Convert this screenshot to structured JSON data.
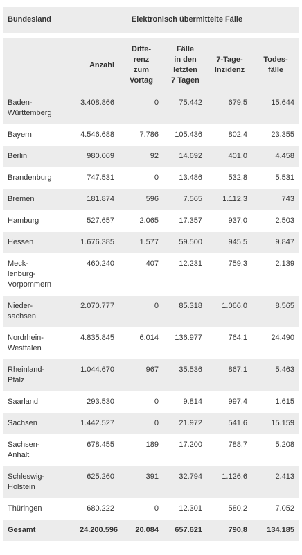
{
  "table": {
    "header": {
      "state": "Bundesland",
      "group": "Elektronisch übermittelte Fälle",
      "columns": [
        [
          "Anzahl"
        ],
        [
          "Diffe-",
          "renz",
          "zum",
          "Vortag"
        ],
        [
          "Fälle",
          "in den",
          "letzten",
          "7 Tagen"
        ],
        [
          "7-Tage-",
          "Inzidenz"
        ],
        [
          "Todes-",
          "fälle"
        ]
      ]
    },
    "rows": [
      {
        "state": [
          "Baden-",
          "Württemberg"
        ],
        "values": [
          "3.408.866",
          "0",
          "75.442",
          "679,5",
          "15.644"
        ]
      },
      {
        "state": [
          "Bayern"
        ],
        "values": [
          "4.546.688",
          "7.786",
          "105.436",
          "802,4",
          "23.355"
        ]
      },
      {
        "state": [
          "Berlin"
        ],
        "values": [
          "980.069",
          "92",
          "14.692",
          "401,0",
          "4.458"
        ]
      },
      {
        "state": [
          "Brandenburg"
        ],
        "values": [
          "747.531",
          "0",
          "13.486",
          "532,8",
          "5.531"
        ]
      },
      {
        "state": [
          "Bremen"
        ],
        "values": [
          "181.874",
          "596",
          "7.565",
          "1.112,3",
          "743"
        ]
      },
      {
        "state": [
          "Hamburg"
        ],
        "values": [
          "527.657",
          "2.065",
          "17.357",
          "937,0",
          "2.503"
        ]
      },
      {
        "state": [
          "Hessen"
        ],
        "values": [
          "1.676.385",
          "1.577",
          "59.500",
          "945,5",
          "9.847"
        ]
      },
      {
        "state": [
          "Meck-",
          "lenburg-",
          "Vorpommern"
        ],
        "values": [
          "460.240",
          "407",
          "12.231",
          "759,3",
          "2.139"
        ]
      },
      {
        "state": [
          "Nieder-",
          "sachsen"
        ],
        "values": [
          "2.070.777",
          "0",
          "85.318",
          "1.066,0",
          "8.565"
        ]
      },
      {
        "state": [
          "Nordrhein-",
          "Westfalen"
        ],
        "values": [
          "4.835.845",
          "6.014",
          "136.977",
          "764,1",
          "24.490"
        ]
      },
      {
        "state": [
          "Rheinland-",
          "Pfalz"
        ],
        "values": [
          "1.044.670",
          "967",
          "35.536",
          "867,1",
          "5.463"
        ]
      },
      {
        "state": [
          "Saarland"
        ],
        "values": [
          "293.530",
          "0",
          "9.814",
          "997,4",
          "1.615"
        ]
      },
      {
        "state": [
          "Sachsen"
        ],
        "values": [
          "1.442.527",
          "0",
          "21.972",
          "541,6",
          "15.159"
        ]
      },
      {
        "state": [
          "Sachsen-",
          "Anhalt"
        ],
        "values": [
          "678.455",
          "189",
          "17.200",
          "788,7",
          "5.208"
        ]
      },
      {
        "state": [
          "Schleswig-",
          "Holstein"
        ],
        "values": [
          "625.260",
          "391",
          "32.794",
          "1.126,6",
          "2.413"
        ]
      },
      {
        "state": [
          "Thüringen"
        ],
        "values": [
          "680.222",
          "0",
          "12.301",
          "580,2",
          "7.052"
        ]
      }
    ],
    "total": {
      "state": [
        "Gesamt"
      ],
      "values": [
        "24.200.596",
        "20.084",
        "657.621",
        "790,8",
        "134.185"
      ]
    }
  }
}
